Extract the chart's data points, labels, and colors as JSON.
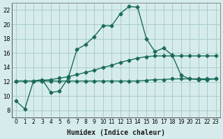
{
  "xlabel": "Humidex (Indice chaleur)",
  "background_color": "#d6ecec",
  "grid_color": "#aacccc",
  "line_color": "#1a6b5a",
  "xlim": [
    -0.5,
    23.5
  ],
  "ylim": [
    7,
    23
  ],
  "xticks": [
    0,
    1,
    2,
    3,
    4,
    5,
    6,
    7,
    8,
    9,
    10,
    11,
    12,
    13,
    14,
    15,
    16,
    17,
    18,
    19,
    20,
    21,
    22,
    23
  ],
  "yticks": [
    8,
    10,
    12,
    14,
    16,
    18,
    20,
    22
  ],
  "series1_x": [
    0,
    1,
    2,
    3,
    4,
    5,
    6,
    7,
    8,
    9,
    10,
    11,
    12,
    13,
    14,
    15,
    16,
    17,
    18,
    19,
    20,
    21,
    22,
    23
  ],
  "series1_y": [
    9.3,
    8.2,
    12.1,
    12.3,
    10.5,
    10.7,
    12.5,
    16.5,
    17.2,
    18.3,
    19.8,
    19.8,
    21.5,
    22.5,
    22.4,
    18.0,
    16.2,
    16.7,
    15.7,
    12.9,
    12.4,
    12.3,
    12.3,
    12.4
  ],
  "series2_x": [
    0,
    1,
    2,
    3,
    4,
    5,
    6,
    7,
    8,
    9,
    10,
    11,
    12,
    13,
    14,
    15,
    16,
    17,
    18,
    19,
    20,
    21,
    22,
    23
  ],
  "series2_y": [
    12.1,
    12.1,
    12.1,
    12.1,
    12.1,
    12.1,
    12.1,
    12.1,
    12.1,
    12.1,
    12.1,
    12.1,
    12.1,
    12.1,
    12.1,
    12.2,
    12.3,
    12.3,
    12.4,
    12.4,
    12.4,
    12.4,
    12.4,
    12.4
  ],
  "series3_x": [
    0,
    1,
    2,
    3,
    4,
    5,
    6,
    7,
    8,
    9,
    10,
    11,
    12,
    13,
    14,
    15,
    16,
    17,
    18,
    19,
    20,
    21,
    22,
    23
  ],
  "series3_y": [
    12.1,
    12.1,
    12.1,
    12.2,
    12.3,
    12.5,
    12.7,
    13.0,
    13.3,
    13.6,
    14.0,
    14.3,
    14.7,
    15.0,
    15.3,
    15.5,
    15.6,
    15.6,
    15.6,
    15.6,
    15.6,
    15.6,
    15.6,
    15.6
  ]
}
